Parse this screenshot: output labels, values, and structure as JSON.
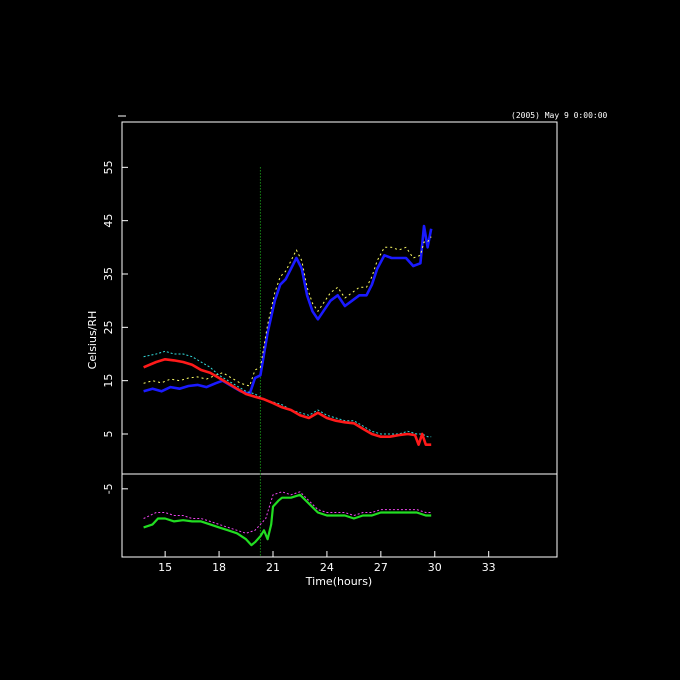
{
  "chart_data": {
    "type": "line",
    "timestamp": "(2005) May 9 0:00:00",
    "xlabel": "Time(hours)",
    "ylabel": "Celsius/RH",
    "xlim": [
      12.6,
      36.8
    ],
    "ylim_upper": [
      -2.5,
      63.5
    ],
    "ylim_lower": [
      -16.5,
      -2.5
    ],
    "x_ticks": [
      15,
      18,
      21,
      24,
      27,
      30,
      33
    ],
    "y_ticks": [
      5,
      15,
      25,
      35,
      45,
      55,
      -5
    ],
    "colors": {
      "background": "#000000",
      "axes": "#ffffff",
      "blue": "#1a1aff",
      "yellow": "#ffff66",
      "red": "#ff1a1a",
      "cyan": "#33dddd",
      "green": "#22dd22",
      "magenta": "#ee44ee",
      "spike": "#22cc22"
    },
    "series": [
      {
        "color": "blue",
        "points": [
          [
            13.8,
            13
          ],
          [
            14.3,
            13.5
          ],
          [
            14.8,
            13
          ],
          [
            15.3,
            13.8
          ],
          [
            15.8,
            13.5
          ],
          [
            16.3,
            14
          ],
          [
            16.8,
            14.2
          ],
          [
            17.3,
            13.8
          ],
          [
            17.8,
            14.5
          ],
          [
            18.2,
            15
          ],
          [
            18.7,
            14
          ],
          [
            19.2,
            13
          ],
          [
            19.7,
            12.5
          ],
          [
            20.0,
            15.5
          ],
          [
            20.3,
            16
          ],
          [
            20.5,
            20
          ],
          [
            20.7,
            24
          ],
          [
            20.9,
            27
          ],
          [
            21.1,
            30
          ],
          [
            21.4,
            33
          ],
          [
            21.7,
            34
          ],
          [
            22.0,
            36
          ],
          [
            22.3,
            38
          ],
          [
            22.6,
            36
          ],
          [
            22.9,
            31
          ],
          [
            23.2,
            28
          ],
          [
            23.5,
            26.5
          ],
          [
            23.8,
            28
          ],
          [
            24.2,
            30
          ],
          [
            24.6,
            31
          ],
          [
            25.0,
            29
          ],
          [
            25.4,
            30
          ],
          [
            25.8,
            31
          ],
          [
            26.2,
            31
          ],
          [
            26.5,
            33
          ],
          [
            26.8,
            36
          ],
          [
            27.2,
            38.5
          ],
          [
            27.6,
            38
          ],
          [
            28.0,
            38
          ],
          [
            28.4,
            38
          ],
          [
            28.8,
            36.5
          ],
          [
            29.2,
            37
          ],
          [
            29.4,
            44
          ],
          [
            29.6,
            40
          ],
          [
            29.8,
            43.5
          ]
        ]
      },
      {
        "color": "yellow",
        "points": [
          [
            13.8,
            14.5
          ],
          [
            14.3,
            15
          ],
          [
            14.8,
            14.6
          ],
          [
            15.3,
            15.3
          ],
          [
            15.8,
            15
          ],
          [
            16.3,
            15.5
          ],
          [
            16.8,
            15.7
          ],
          [
            17.3,
            15.3
          ],
          [
            17.8,
            16
          ],
          [
            18.2,
            16.5
          ],
          [
            18.7,
            15.5
          ],
          [
            19.2,
            14.5
          ],
          [
            19.7,
            14
          ],
          [
            20.0,
            17
          ],
          [
            20.3,
            17.5
          ],
          [
            20.5,
            21.5
          ],
          [
            20.7,
            25.5
          ],
          [
            20.9,
            28.5
          ],
          [
            21.1,
            31.5
          ],
          [
            21.4,
            34.5
          ],
          [
            21.7,
            35.5
          ],
          [
            22.0,
            37.5
          ],
          [
            22.3,
            39.5
          ],
          [
            22.6,
            37.5
          ],
          [
            22.9,
            32.5
          ],
          [
            23.2,
            29.5
          ],
          [
            23.5,
            28
          ],
          [
            23.8,
            29.5
          ],
          [
            24.2,
            31.5
          ],
          [
            24.6,
            32.5
          ],
          [
            25.0,
            30.5
          ],
          [
            25.4,
            31.5
          ],
          [
            25.8,
            32.5
          ],
          [
            26.2,
            32.5
          ],
          [
            26.5,
            34.5
          ],
          [
            26.8,
            37.5
          ],
          [
            27.2,
            40
          ],
          [
            27.6,
            40
          ],
          [
            28.0,
            39.5
          ],
          [
            28.4,
            40
          ],
          [
            28.8,
            38
          ],
          [
            29.2,
            38.5
          ],
          [
            29.4,
            41
          ],
          [
            29.6,
            41
          ],
          [
            29.8,
            42
          ]
        ]
      },
      {
        "color": "cyan",
        "points": [
          [
            13.8,
            19.5
          ],
          [
            14.5,
            20
          ],
          [
            15.0,
            20.5
          ],
          [
            15.5,
            20
          ],
          [
            16.0,
            20
          ],
          [
            16.5,
            19.5
          ],
          [
            17.0,
            18.5
          ],
          [
            17.5,
            17.5
          ],
          [
            18.0,
            16
          ],
          [
            18.5,
            15
          ],
          [
            19.0,
            14
          ],
          [
            19.5,
            13
          ],
          [
            20.0,
            12.5
          ],
          [
            20.5,
            11.5
          ],
          [
            21.0,
            11
          ],
          [
            21.5,
            10.5
          ],
          [
            22.0,
            9.5
          ],
          [
            22.5,
            9
          ],
          [
            23.0,
            8.5
          ],
          [
            23.5,
            9.5
          ],
          [
            24.0,
            8.5
          ],
          [
            24.5,
            8
          ],
          [
            25.0,
            7.5
          ],
          [
            25.5,
            7.5
          ],
          [
            26.0,
            6.5
          ],
          [
            26.5,
            5.5
          ],
          [
            27.0,
            5
          ],
          [
            27.5,
            5
          ],
          [
            28.0,
            5
          ],
          [
            28.5,
            5.5
          ],
          [
            29.0,
            5
          ],
          [
            29.3,
            5
          ],
          [
            29.6,
            4.5
          ],
          [
            29.8,
            4.5
          ]
        ]
      },
      {
        "color": "red",
        "points": [
          [
            13.8,
            17.5
          ],
          [
            14.5,
            18.5
          ],
          [
            15.0,
            19
          ],
          [
            15.5,
            18.8
          ],
          [
            16.0,
            18.5
          ],
          [
            16.5,
            18
          ],
          [
            17.0,
            17
          ],
          [
            17.5,
            16.5
          ],
          [
            18.0,
            15.5
          ],
          [
            18.5,
            14.5
          ],
          [
            19.0,
            13.5
          ],
          [
            19.5,
            12.5
          ],
          [
            20.0,
            12
          ],
          [
            20.5,
            11.5
          ],
          [
            21.0,
            10.8
          ],
          [
            21.5,
            10
          ],
          [
            22.0,
            9.5
          ],
          [
            22.5,
            8.5
          ],
          [
            23.0,
            8
          ],
          [
            23.5,
            9
          ],
          [
            24.0,
            8
          ],
          [
            24.5,
            7.5
          ],
          [
            25.0,
            7.2
          ],
          [
            25.5,
            7
          ],
          [
            26.0,
            6
          ],
          [
            26.5,
            5
          ],
          [
            27.0,
            4.5
          ],
          [
            27.5,
            4.5
          ],
          [
            28.0,
            4.8
          ],
          [
            28.5,
            5
          ],
          [
            28.9,
            4.8
          ],
          [
            29.1,
            3
          ],
          [
            29.3,
            5
          ],
          [
            29.5,
            3
          ],
          [
            29.8,
            3
          ]
        ]
      },
      {
        "color": "magenta",
        "points": [
          [
            13.8,
            -10
          ],
          [
            14.5,
            -9
          ],
          [
            15.0,
            -9
          ],
          [
            15.5,
            -9.5
          ],
          [
            16.0,
            -9.5
          ],
          [
            16.5,
            -10
          ],
          [
            17.0,
            -10
          ],
          [
            17.5,
            -10.5
          ],
          [
            18.0,
            -11
          ],
          [
            18.5,
            -11.5
          ],
          [
            19.0,
            -12
          ],
          [
            19.5,
            -12.5
          ],
          [
            20.0,
            -12
          ],
          [
            20.3,
            -11
          ],
          [
            20.6,
            -10
          ],
          [
            20.8,
            -8
          ],
          [
            21.0,
            -6
          ],
          [
            21.5,
            -5.5
          ],
          [
            22.0,
            -6
          ],
          [
            22.5,
            -5.5
          ],
          [
            23.0,
            -7
          ],
          [
            23.5,
            -8.5
          ],
          [
            24.0,
            -9
          ],
          [
            24.5,
            -9
          ],
          [
            25.0,
            -9
          ],
          [
            25.5,
            -9.5
          ],
          [
            26.0,
            -9
          ],
          [
            26.5,
            -9
          ],
          [
            27.0,
            -8.5
          ],
          [
            27.5,
            -8.5
          ],
          [
            28.0,
            -8.5
          ],
          [
            28.5,
            -8.5
          ],
          [
            29.0,
            -8.5
          ],
          [
            29.5,
            -9
          ],
          [
            29.8,
            -9
          ]
        ]
      },
      {
        "color": "green",
        "points": [
          [
            13.8,
            -11.5
          ],
          [
            14.3,
            -11
          ],
          [
            14.6,
            -10
          ],
          [
            15.0,
            -10
          ],
          [
            15.5,
            -10.5
          ],
          [
            16.0,
            -10.3
          ],
          [
            16.5,
            -10.5
          ],
          [
            17.0,
            -10.5
          ],
          [
            17.5,
            -11
          ],
          [
            18.0,
            -11.5
          ],
          [
            18.5,
            -12
          ],
          [
            19.0,
            -12.5
          ],
          [
            19.5,
            -13.5
          ],
          [
            19.8,
            -14.5
          ],
          [
            20.0,
            -14
          ],
          [
            20.3,
            -13
          ],
          [
            20.5,
            -12
          ],
          [
            20.7,
            -13.5
          ],
          [
            20.9,
            -11
          ],
          [
            21.0,
            -8
          ],
          [
            21.3,
            -7
          ],
          [
            21.5,
            -6.5
          ],
          [
            22.0,
            -6.5
          ],
          [
            22.5,
            -6
          ],
          [
            23.0,
            -7.5
          ],
          [
            23.5,
            -9
          ],
          [
            24.0,
            -9.5
          ],
          [
            24.5,
            -9.5
          ],
          [
            25.0,
            -9.5
          ],
          [
            25.5,
            -10
          ],
          [
            26.0,
            -9.5
          ],
          [
            26.5,
            -9.5
          ],
          [
            27.0,
            -9
          ],
          [
            27.5,
            -9
          ],
          [
            28.0,
            -9
          ],
          [
            28.5,
            -9
          ],
          [
            29.0,
            -9
          ],
          [
            29.5,
            -9.5
          ],
          [
            29.8,
            -9.5
          ]
        ]
      }
    ],
    "spike": {
      "x": 20.3,
      "y_min": -16.5,
      "y_max": 55
    }
  }
}
